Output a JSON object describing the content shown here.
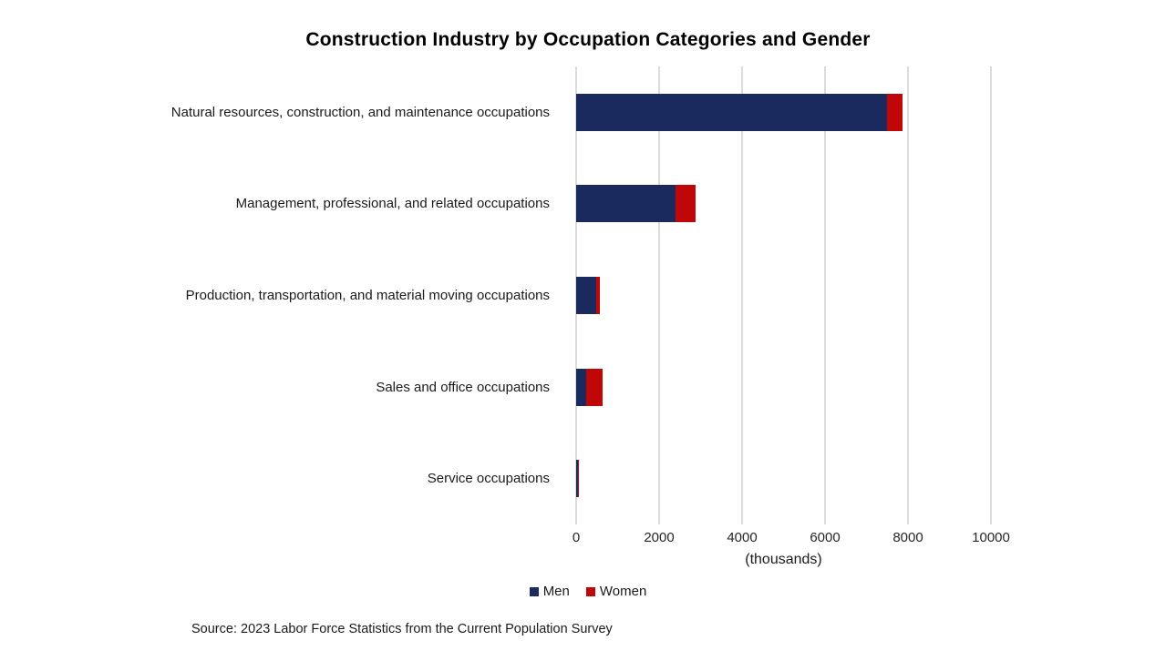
{
  "title": "Construction Industry by Occupation Categories and Gender",
  "source": "Source: 2023 Labor Force Statistics from the Current Population Survey",
  "chart_data": {
    "type": "bar",
    "orientation": "horizontal",
    "stacked": true,
    "title": "Construction Industry by Occupation Categories and Gender",
    "categories": [
      "Natural resources, construction, and maintenance occupations",
      "Management, professional, and related occupations",
      "Production, transportation, and material moving occupations",
      "Sales and office occupations",
      "Service occupations"
    ],
    "series": [
      {
        "name": "Men",
        "color": "#1B2A5E",
        "values": [
          7490,
          2390,
          490,
          250,
          40
        ]
      },
      {
        "name": "Women",
        "color": "#C00707",
        "values": [
          380,
          500,
          90,
          390,
          30
        ]
      }
    ],
    "xlabel": "(thousands)",
    "ylabel": "",
    "xlim": [
      0,
      10000
    ],
    "xticks": [
      0,
      2000,
      4000,
      6000,
      8000,
      10000
    ],
    "grid": true,
    "grid_color": "#dcdcdc",
    "legend_position": "bottom",
    "units": "thousands of employed persons"
  }
}
